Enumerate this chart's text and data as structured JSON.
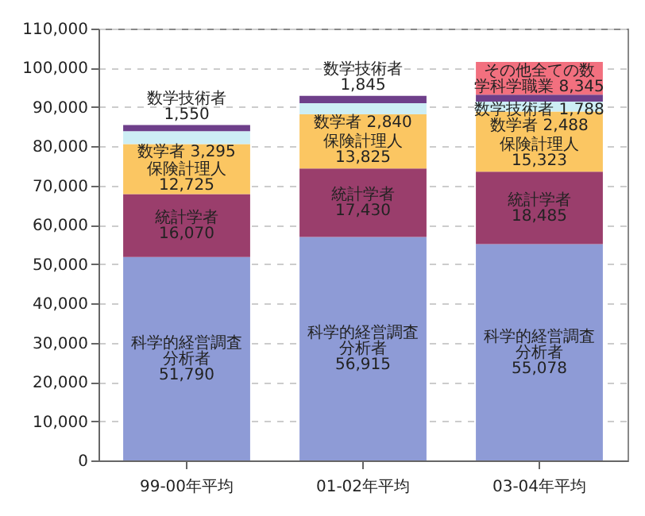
{
  "chart_data": {
    "type": "bar",
    "stacked": true,
    "categories": [
      "99-00年平均",
      "01-02年平均",
      "03-04年平均"
    ],
    "series": [
      {
        "name": "科学的経営調査分析者",
        "color": "#8e9bd6",
        "values": [
          51790,
          56915,
          55078
        ],
        "value_labels": [
          "51,790",
          "56,915",
          "55,078"
        ]
      },
      {
        "name": "統計学者",
        "color": "#9a3e6c",
        "values": [
          16070,
          17430,
          18485
        ],
        "value_labels": [
          "16,070",
          "17,430",
          "18,485"
        ]
      },
      {
        "name": "保険計理人",
        "color": "#fbc662",
        "values": [
          12725,
          13825,
          15323
        ],
        "value_labels": [
          "12,725",
          "13,825",
          "15,323"
        ]
      },
      {
        "name": "数学者",
        "color": "#cdeef5",
        "values": [
          3295,
          2840,
          2488
        ],
        "value_labels": [
          "3,295",
          "2,840",
          "2,488"
        ]
      },
      {
        "name": "数学技術者",
        "color": "#6e3f8a",
        "values": [
          1550,
          1845,
          1788
        ],
        "value_labels": [
          "1,550",
          "1,845",
          "1,788"
        ]
      },
      {
        "name": "その他全ての数学科学職業",
        "color": "#f2707f",
        "values": [
          null,
          null,
          8345
        ],
        "value_labels": [
          null,
          null,
          "8,345"
        ]
      }
    ],
    "ylim": [
      0,
      110000
    ],
    "yticks": [
      0,
      {
        "value": 10000,
        "label": "10,000"
      },
      {
        "value": 20000,
        "label": "20,000"
      },
      {
        "value": 30000,
        "label": "30,000"
      },
      {
        "value": 40000,
        "label": "40,000"
      },
      {
        "value": 50000,
        "label": "50,000"
      },
      {
        "value": 60000,
        "label": "60,000"
      },
      {
        "value": 70000,
        "label": "70,000"
      },
      {
        "value": 80000,
        "label": "80,000"
      },
      {
        "value": 90000,
        "label": "90,000"
      },
      {
        "value": 100000,
        "label": "100,000"
      },
      {
        "value": 110000,
        "label": "110,000"
      }
    ],
    "grid": "y"
  }
}
